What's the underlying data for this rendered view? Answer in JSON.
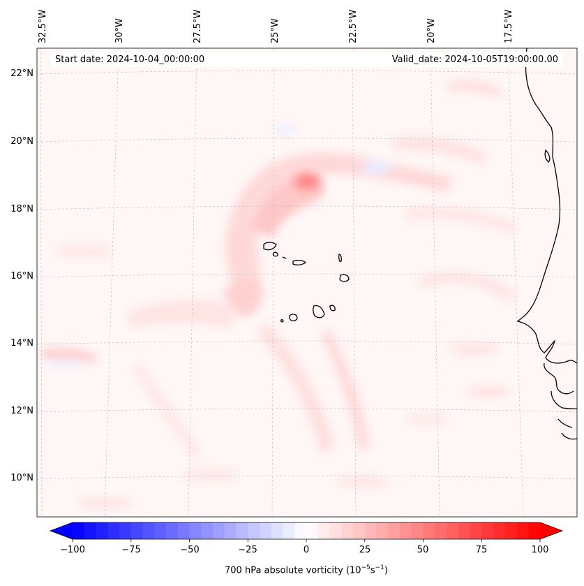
{
  "map": {
    "start_date": "Start date: 2024-10-04_00:00:00",
    "valid_date": "Valid_date: 2024-10-05T19:00:00.00",
    "lon_labels": [
      "32.5°W",
      "30°W",
      "27.5°W",
      "25°W",
      "22.5°W",
      "20°W",
      "17.5°W"
    ],
    "lat_labels": [
      "22°N",
      "20°N",
      "18°N",
      "16°N",
      "14°N",
      "12°N",
      "10°N"
    ],
    "field": "700 hPa absolute vorticity",
    "colors": {
      "positive": "#ff0000",
      "negative": "#0000ff",
      "neutral": "#ffffff",
      "coast": "#000000",
      "grid": "#bbbbbb"
    }
  },
  "colorbar": {
    "ticks": [
      "−100",
      "−75",
      "−50",
      "−25",
      "0",
      "25",
      "50",
      "75",
      "100"
    ],
    "min": -100,
    "max": 100,
    "label_text": "700 hPa absolute vorticity (10",
    "label_exp1": "−5",
    "label_mid": "s",
    "label_exp2": "−1",
    "label_end": ")"
  }
}
